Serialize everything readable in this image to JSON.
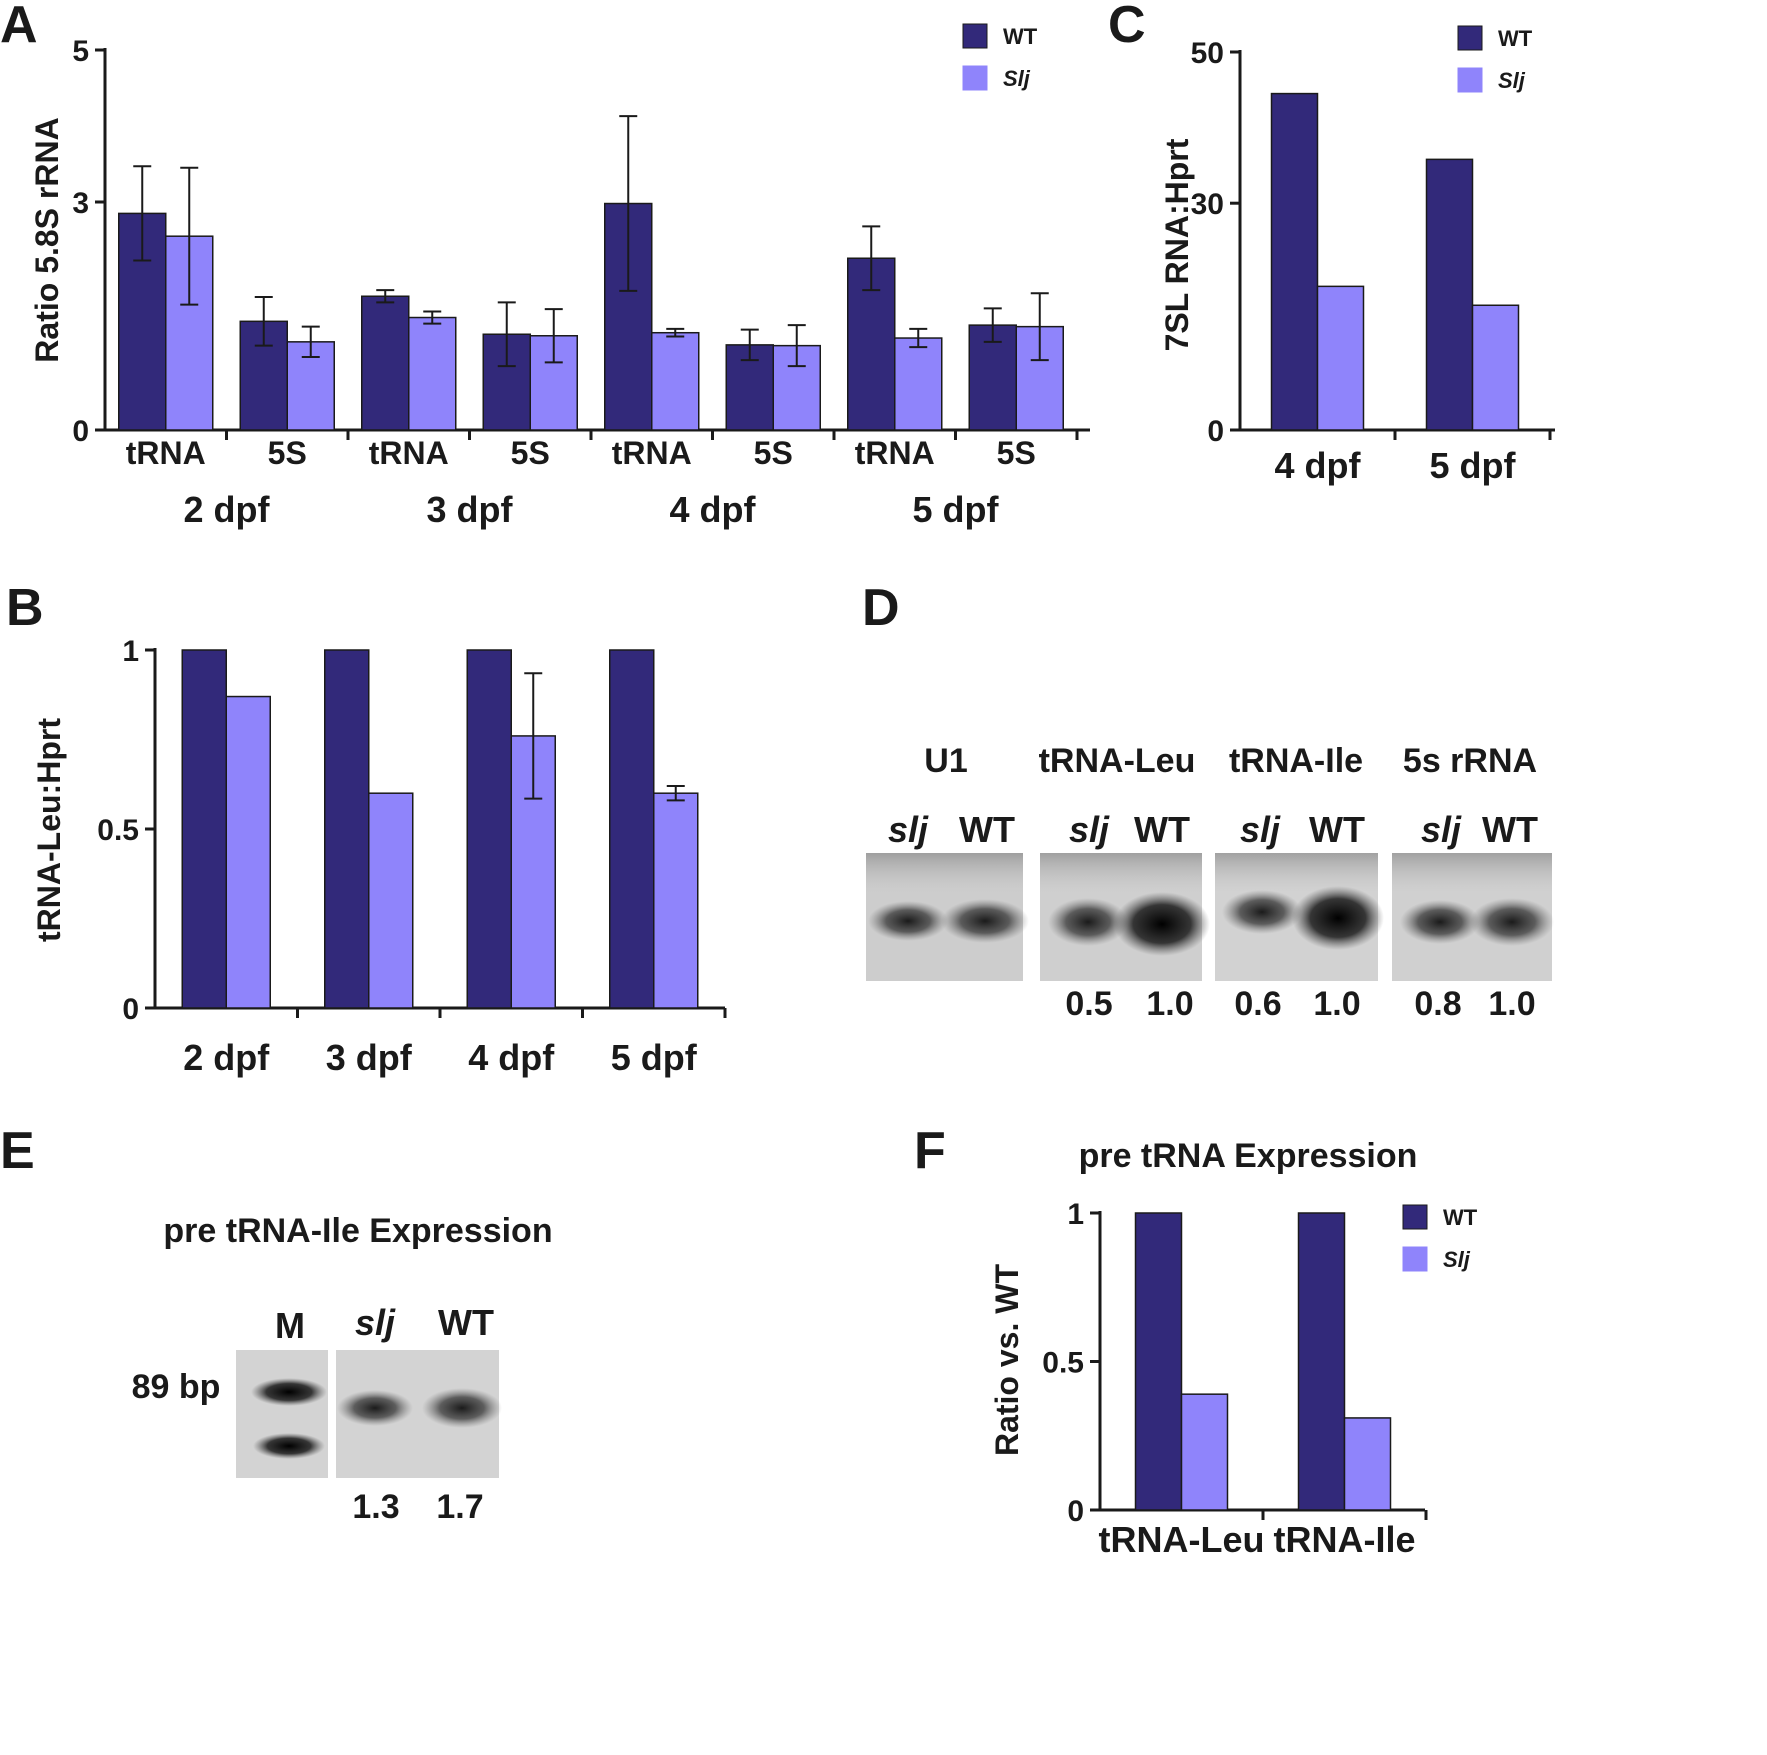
{
  "colors": {
    "wt": "#32297a",
    "slj": "#8f84fb",
    "bar_stroke": "#1a1a1a",
    "blot_bg": "#cfcfcf",
    "band": "#151515"
  },
  "legend": {
    "wt": "WT",
    "slj": "Slj"
  },
  "panels": {
    "A": "A",
    "B": "B",
    "C": "C",
    "D": "D",
    "E": "E",
    "F": "F"
  },
  "chart_data": [
    {
      "id": "A",
      "type": "bar",
      "ylabel": "Ratio 5.8S rRNA",
      "ylim": [
        0,
        5
      ],
      "yticks": [
        "0",
        "3",
        "5"
      ],
      "ytick_values": [
        0,
        3,
        5
      ],
      "categories": [
        "tRNA",
        "5S",
        "tRNA",
        "5S",
        "tRNA",
        "5S",
        "tRNA",
        "5S"
      ],
      "groups": [
        "2 dpf",
        "3 dpf",
        "4 dpf",
        "5 dpf"
      ],
      "series": [
        {
          "name": "WT",
          "values": [
            2.85,
            1.43,
            1.76,
            1.26,
            2.98,
            1.12,
            2.26,
            1.38
          ],
          "err": [
            0.62,
            0.32,
            0.08,
            0.42,
            1.15,
            0.2,
            0.42,
            0.22
          ]
        },
        {
          "name": "Slj",
          "values": [
            2.55,
            1.16,
            1.48,
            1.24,
            1.28,
            1.11,
            1.21,
            1.36
          ],
          "err": [
            0.9,
            0.2,
            0.08,
            0.35,
            0.05,
            0.27,
            0.12,
            0.44
          ]
        }
      ],
      "legend_position": "top-right"
    },
    {
      "id": "B",
      "type": "bar",
      "ylabel": "tRNA-Leu:Hprt",
      "ylim": [
        0,
        1
      ],
      "yticks": [
        "0",
        "0.5",
        "1"
      ],
      "ytick_values": [
        0,
        0.5,
        1
      ],
      "categories": [
        "2 dpf",
        "3 dpf",
        "4 dpf",
        "5 dpf"
      ],
      "series": [
        {
          "name": "WT",
          "values": [
            1,
            1,
            1,
            1
          ],
          "err": [
            0,
            0,
            0,
            0
          ]
        },
        {
          "name": "Slj",
          "values": [
            0.87,
            0.6,
            0.76,
            0.6
          ],
          "err": [
            0,
            0,
            0.175,
            0.02
          ]
        }
      ]
    },
    {
      "id": "C",
      "type": "bar",
      "ylabel": "7SL RNA:Hprt",
      "ylim": [
        0,
        50
      ],
      "yticks": [
        "0",
        "30",
        "50"
      ],
      "ytick_values": [
        0,
        30,
        50
      ],
      "categories": [
        "4 dpf",
        "5 dpf"
      ],
      "series": [
        {
          "name": "WT",
          "values": [
            44.5,
            35.8
          ]
        },
        {
          "name": "Slj",
          "values": [
            19.0,
            16.5
          ]
        }
      ],
      "legend_position": "top-right"
    },
    {
      "id": "F",
      "type": "bar",
      "title": "pre tRNA Expression",
      "ylabel": "Ratio vs. WT",
      "ylim": [
        0,
        1
      ],
      "yticks": [
        "0",
        "0.5",
        "1"
      ],
      "ytick_values": [
        0,
        0.5,
        1
      ],
      "categories": [
        "tRNA-Leu",
        "tRNA-Ile"
      ],
      "series": [
        {
          "name": "WT",
          "values": [
            1,
            1
          ]
        },
        {
          "name": "Slj",
          "values": [
            0.39,
            0.31
          ]
        }
      ],
      "legend_position": "top-right"
    }
  ],
  "blot_D": {
    "groups": [
      {
        "label": "U1",
        "lanes": [
          "slj",
          "WT"
        ],
        "quant": [
          "",
          ""
        ]
      },
      {
        "label": "tRNA-Leu",
        "lanes": [
          "slj",
          "WT"
        ],
        "quant": [
          "0.5",
          "1.0"
        ]
      },
      {
        "label": "tRNA-Ile",
        "lanes": [
          "slj",
          "WT"
        ],
        "quant": [
          "0.6",
          "1.0"
        ]
      },
      {
        "label": "5s rRNA",
        "lanes": [
          "slj",
          "WT"
        ],
        "quant": [
          "0.8",
          "1.0"
        ]
      }
    ]
  },
  "blot_E": {
    "title": "pre tRNA-Ile Expression",
    "marker_label": "M",
    "lanes": [
      "slj",
      "WT"
    ],
    "size_label": "89 bp",
    "quant": [
      "1.3",
      "1.7"
    ]
  }
}
